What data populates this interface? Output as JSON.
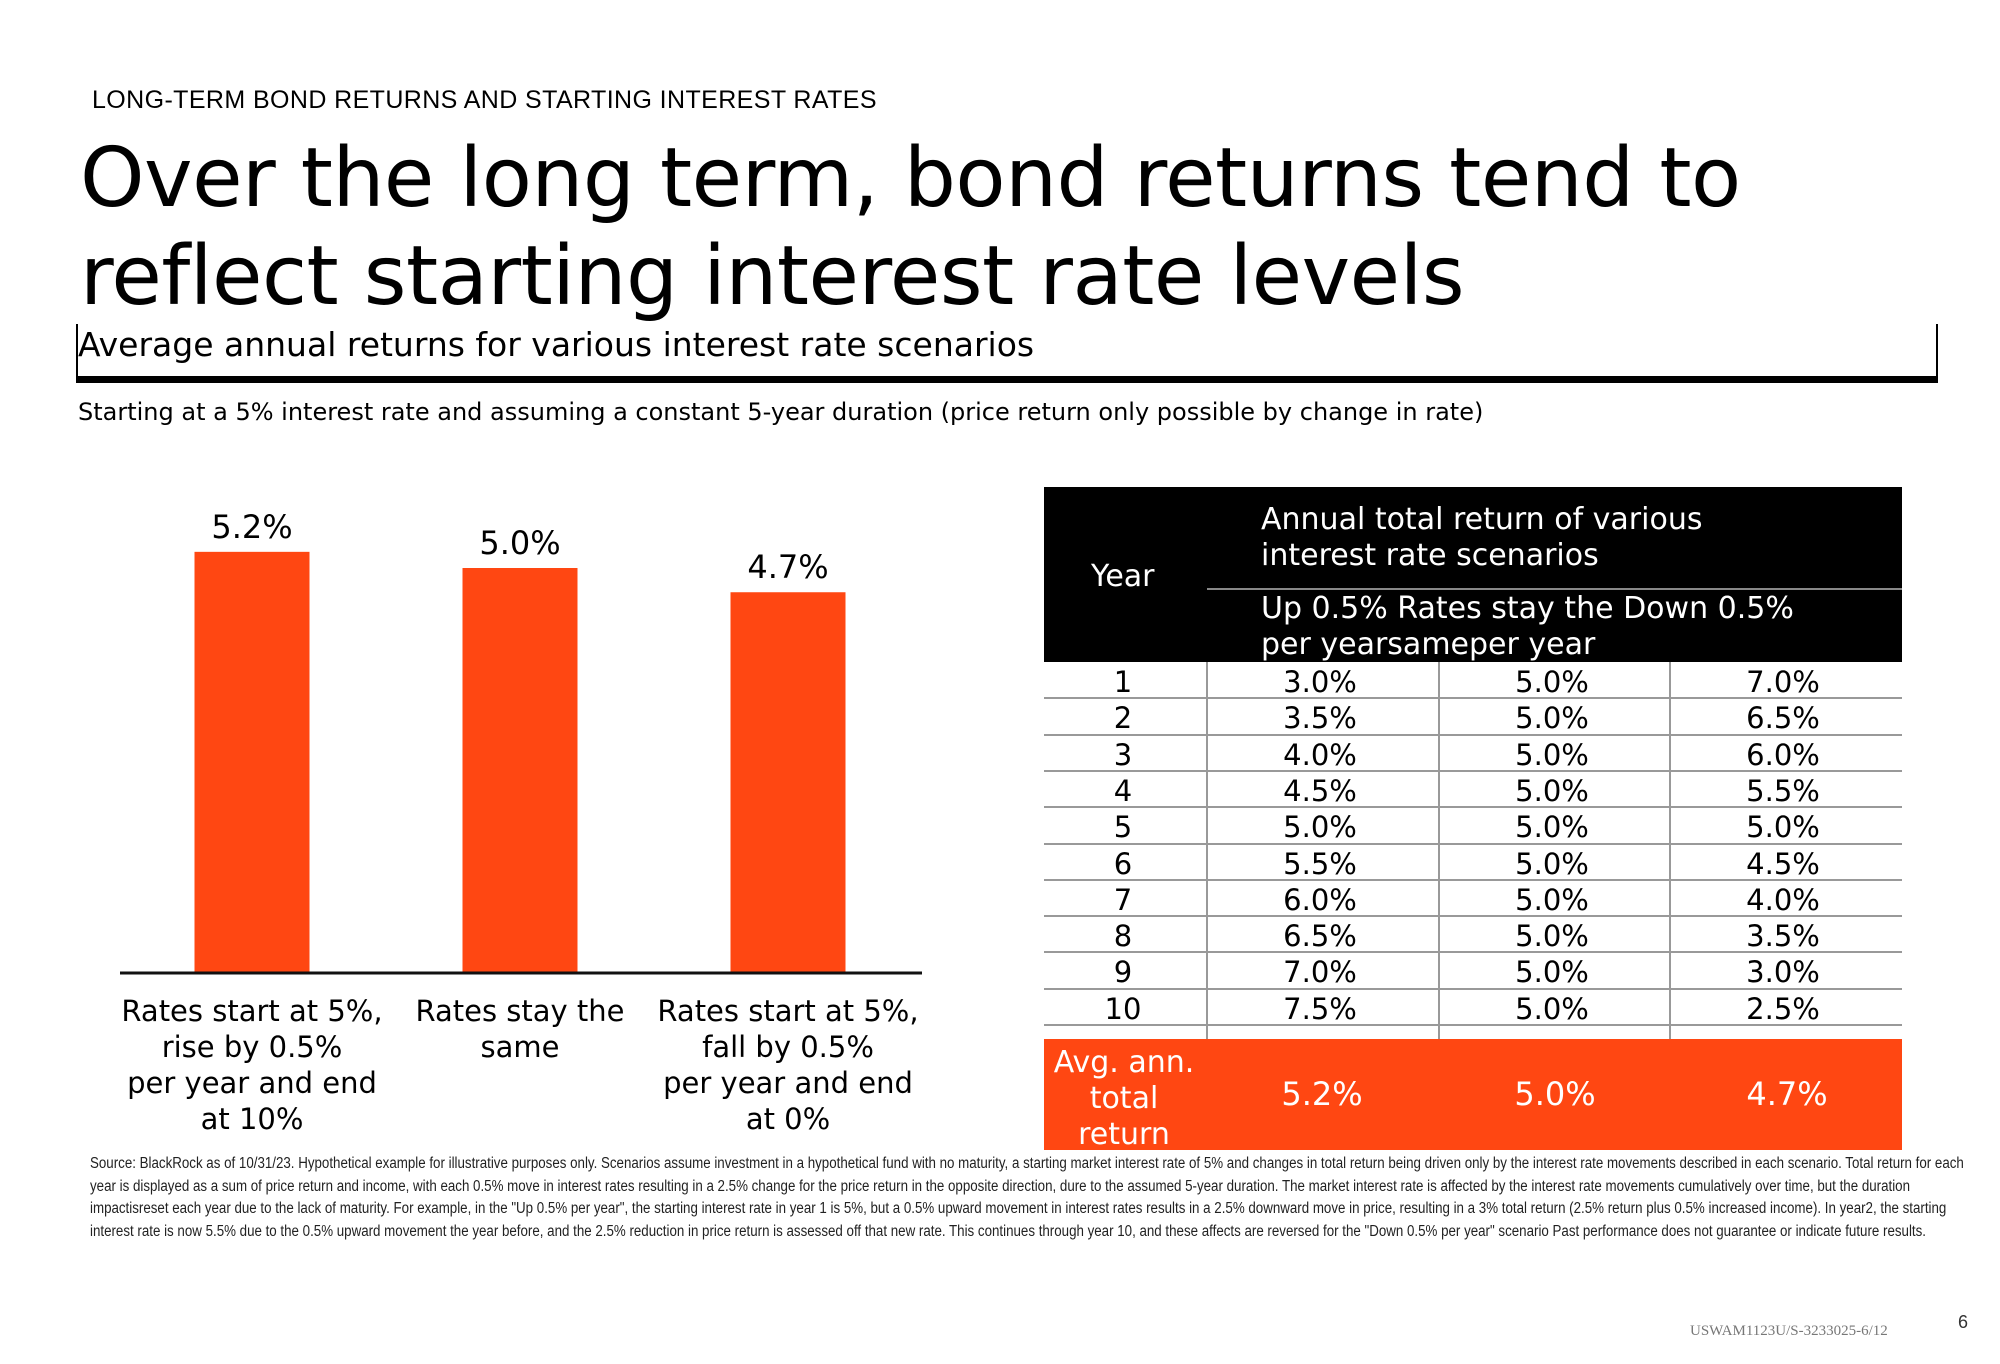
{
  "kicker": "LONG-TERM BOND RETURNS AND STARTING INTEREST RATES",
  "title": "Over the long term, bond returns tend to reflect starting interest rate levels",
  "subtitle": "Average annual returns for various interest rate scenarios",
  "note": "Starting at a 5% interest rate and assuming a constant 5-year duration (price return only possible by change in rate)",
  "colors": {
    "accent": "#ff4712",
    "table_header": "#000000"
  },
  "chart_data": {
    "type": "bar",
    "categories": [
      "Rates start at 5%, rise by 0.5% per year and end at 10%",
      "Rates stay the same",
      "Rates start at 5%, fall by 0.5% per year and end at 0%"
    ],
    "category_lines": [
      [
        "Rates start at 5%,",
        "rise by 0.5%",
        "per year and end",
        "at 10%"
      ],
      [
        "Rates stay the",
        "same"
      ],
      [
        "Rates start at 5%,",
        "fall by 0.5%",
        "per year and end",
        "at 0%"
      ]
    ],
    "values": [
      5.2,
      5.0,
      4.7
    ],
    "data_labels": [
      "5.2%",
      "5.0%",
      "4.7%"
    ],
    "color": "#ff4712"
  },
  "table": {
    "year_header": "Year",
    "group_header": [
      "Annual total return of various",
      "interest rate scenarios"
    ],
    "scenario_headers": [
      "Up 0.5% Rates stay the Down 0.5%",
      "per yearsameper year"
    ],
    "rows": [
      [
        "1",
        "3.0%",
        "5.0%",
        "7.0%"
      ],
      [
        "2",
        "3.5%",
        "5.0%",
        "6.5%"
      ],
      [
        "3",
        "4.0%",
        "5.0%",
        "6.0%"
      ],
      [
        "4",
        "4.5%",
        "5.0%",
        "5.5%"
      ],
      [
        "5",
        "5.0%",
        "5.0%",
        "5.0%"
      ],
      [
        "6",
        "5.5%",
        "5.0%",
        "4.5%"
      ],
      [
        "7",
        "6.0%",
        "5.0%",
        "4.0%"
      ],
      [
        "8",
        "6.5%",
        "5.0%",
        "3.5%"
      ],
      [
        "9",
        "7.0%",
        "5.0%",
        "3.0%"
      ],
      [
        "10",
        "7.5%",
        "5.0%",
        "2.5%"
      ]
    ],
    "avg_label": [
      "Avg. ann.",
      "total",
      "return"
    ],
    "avg_values": [
      "5.2%",
      "5.0%",
      "4.7%"
    ]
  },
  "source": "Source: BlackRock as of 10/31/23. Hypothetical example for illustrative purposes only. Scenarios assume investment in a hypothetical fund with no maturity, a starting market interest rate of 5% and changes in total return being driven only by the interest rate movements described in each scenario. Total return for each year is displayed as a sum of price return and income, with each 0.5% move in interest rates resulting in a 2.5% change for the price return in the opposite direction, dure to the assumed 5-year duration. The market interest rate is affected by the interest rate movements cumulatively over time, but the duration impactisreset each year due to the lack of maturity. For example, in the \"Up 0.5% per year\", the starting interest rate in year 1 is 5%, but a 0.5% upward movement in interest rates results in a 2.5% downward move in price, resulting in a 3% total return (2.5% return plus 0.5% increased income). In year2, the starting interest rate is now 5.5% due to the 0.5% upward movement the year before, and the 2.5% reduction in price return is assessed off that new rate. This continues through year 10, and these affects are reversed for the \"Down 0.5% per year\" scenario Past performance does not guarantee or indicate future results.",
  "footer": {
    "code": "USWAM1123U/S-3233025-6/12",
    "page": "6"
  }
}
